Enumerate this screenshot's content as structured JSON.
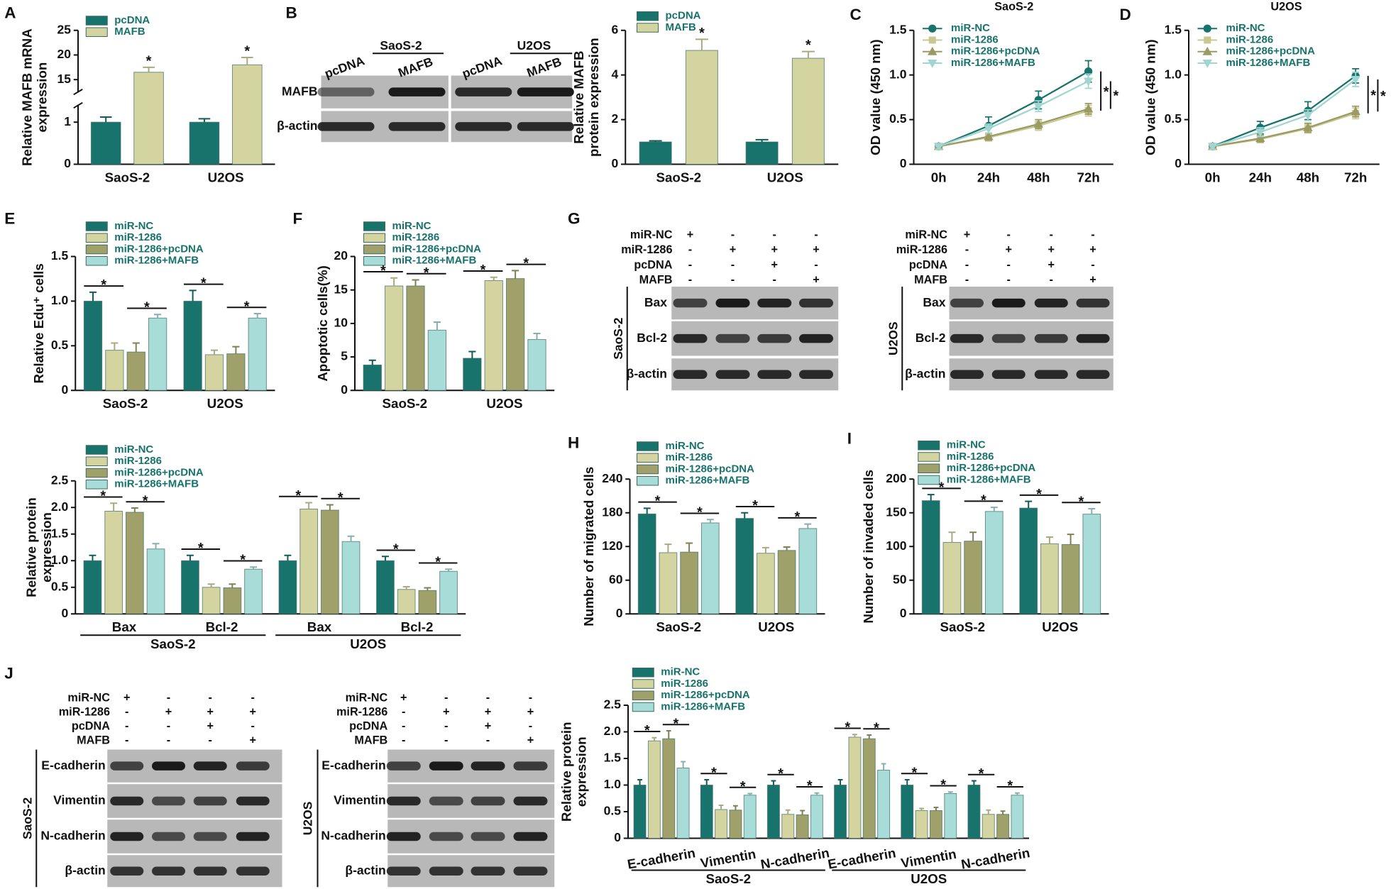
{
  "panel_labels": [
    "A",
    "B",
    "C",
    "D",
    "E",
    "F",
    "G",
    "H",
    "I",
    "J"
  ],
  "chart_data": [
    {
      "type": "bar",
      "ylabel": [
        "Relative MAFB mRNA",
        "expression"
      ],
      "categories": [
        "SaoS-2",
        "U2OS"
      ],
      "ylim": [
        0,
        25
      ],
      "ybreak": [
        1.4,
        12.5
      ],
      "yticks": [
        0,
        1,
        15,
        20,
        25
      ],
      "series": [
        {
          "name": "pcDNA",
          "color": "#17736b",
          "values": [
            1.0,
            1.0
          ],
          "errors": [
            0.12,
            0.08
          ]
        },
        {
          "name": "MAFB",
          "color": "#d4d4a0",
          "values": [
            16.5,
            18
          ],
          "errors": [
            1,
            1.5
          ]
        }
      ],
      "comparisons": [
        {
          "between": [
            "MAFB"
          ],
          "label": "*"
        }
      ]
    },
    {
      "type": "bar",
      "ylabel": [
        "Relative MAFB",
        "protein expression"
      ],
      "categories": [
        "SaoS-2",
        "U2OS"
      ],
      "ylim": [
        0,
        6
      ],
      "yticks": [
        0,
        2,
        4,
        6
      ],
      "series": [
        {
          "name": "pcDNA",
          "color": "#17736b",
          "values": [
            1.0,
            1.0
          ],
          "errors": [
            0.05,
            0.1
          ]
        },
        {
          "name": "MAFB",
          "color": "#d4d4a0",
          "values": [
            5.1,
            4.75
          ],
          "errors": [
            0.5,
            0.3
          ]
        }
      ],
      "comparisons": [
        {
          "between": [
            "MAFB"
          ],
          "label": "*"
        }
      ]
    },
    {
      "type": "line",
      "title": "SaoS-2",
      "ylabel": "OD value (450 nm)",
      "categories": [
        "0h",
        "24h",
        "48h",
        "72h"
      ],
      "ylim": [
        0,
        1.5
      ],
      "yticks": [
        0,
        0.5,
        {
          "value": 1,
          "label": "1.0"
        },
        1.5
      ],
      "series": [
        {
          "name": "miR-NC",
          "color": "#17736b",
          "marker": "circle",
          "values": [
            0.2,
            0.43,
            0.72,
            1.04
          ],
          "errors": [
            0.03,
            0.1,
            0.1,
            0.12
          ]
        },
        {
          "name": "miR-1286",
          "color": "#c8c890",
          "marker": "square",
          "values": [
            0.2,
            0.3,
            0.43,
            0.6
          ],
          "errors": [
            0.03,
            0.04,
            0.05,
            0.06
          ]
        },
        {
          "name": "miR-1286+pcDNA",
          "color": "#9a9a62",
          "marker": "triangle",
          "values": [
            0.2,
            0.31,
            0.45,
            0.62
          ],
          "errors": [
            0.03,
            0.04,
            0.05,
            0.06
          ]
        },
        {
          "name": "miR-1286+MAFB",
          "color": "#9fd6d2",
          "marker": "triangle-down",
          "values": [
            0.2,
            0.4,
            0.65,
            0.93
          ],
          "errors": [
            0.03,
            0.05,
            0.06,
            0.08
          ]
        }
      ],
      "comparisons": [
        {
          "between": [
            "miR-NC",
            "miR-1286"
          ],
          "label": "*"
        },
        {
          "between": [
            "miR-1286+MAFB",
            "miR-1286+pcDNA"
          ],
          "label": "*"
        }
      ]
    },
    {
      "type": "line",
      "title": "U2OS",
      "ylabel": "OD value (450 nm)",
      "categories": [
        "0h",
        "24h",
        "48h",
        "72h"
      ],
      "ylim": [
        0,
        1.5
      ],
      "yticks": [
        0,
        0.5,
        {
          "value": 1,
          "label": "1.0"
        },
        1.5
      ],
      "series": [
        {
          "name": "miR-NC",
          "color": "#17736b",
          "marker": "circle",
          "values": [
            0.2,
            0.41,
            0.6,
            0.99
          ],
          "errors": [
            0.03,
            0.07,
            0.1,
            0.08
          ]
        },
        {
          "name": "miR-1286",
          "color": "#c8c890",
          "marker": "square",
          "values": [
            0.2,
            0.28,
            0.4,
            0.57
          ],
          "errors": [
            0.03,
            0.04,
            0.05,
            0.06
          ]
        },
        {
          "name": "miR-1286+pcDNA",
          "color": "#9a9a62",
          "marker": "triangle",
          "values": [
            0.2,
            0.29,
            0.41,
            0.59
          ],
          "errors": [
            0.03,
            0.04,
            0.05,
            0.06
          ]
        },
        {
          "name": "miR-1286+MAFB",
          "color": "#9fd6d2",
          "marker": "triangle-down",
          "values": [
            0.2,
            0.36,
            0.55,
            0.95
          ],
          "errors": [
            0.03,
            0.05,
            0.06,
            0.08
          ]
        }
      ],
      "comparisons": [
        {
          "between": [
            "miR-NC",
            "miR-1286"
          ],
          "label": "*"
        },
        {
          "between": [
            "miR-1286+MAFB",
            "miR-1286+pcDNA"
          ],
          "label": "*"
        }
      ]
    },
    {
      "type": "bar",
      "ylabel": "Relative Edu⁺ cells",
      "categories": [
        "SaoS-2",
        "U2OS"
      ],
      "ylim": [
        0,
        1.5
      ],
      "yticks": [
        0,
        0.5,
        {
          "value": 1,
          "label": "1.0"
        },
        1.5
      ],
      "series": [
        {
          "name": "miR-NC",
          "color": "#17736b",
          "values": [
            1.0,
            1.0
          ],
          "errors": [
            0.1,
            0.12
          ]
        },
        {
          "name": "miR-1286",
          "color": "#d4d4a0",
          "values": [
            0.45,
            0.4
          ],
          "errors": [
            0.08,
            0.05
          ]
        },
        {
          "name": "miR-1286+pcDNA",
          "color": "#a0a06a",
          "values": [
            0.43,
            0.41
          ],
          "errors": [
            0.1,
            0.08
          ]
        },
        {
          "name": "miR-1286+MAFB",
          "color": "#a7dcd8",
          "values": [
            0.81,
            0.81
          ],
          "errors": [
            0.04,
            0.05
          ]
        }
      ],
      "comparisons": [
        {
          "between": [
            "miR-NC",
            "miR-1286"
          ],
          "label": "*"
        },
        {
          "between": [
            "miR-1286+pcDNA",
            "miR-1286+MAFB"
          ],
          "label": "*"
        }
      ]
    },
    {
      "type": "bar",
      "ylabel": "Apoptotic cells(%)",
      "categories": [
        "SaoS-2",
        "U2OS"
      ],
      "ylim": [
        0,
        20
      ],
      "yticks": [
        0,
        5,
        10,
        15,
        20
      ],
      "series": [
        {
          "name": "miR-NC",
          "color": "#17736b",
          "values": [
            3.8,
            4.8
          ],
          "errors": [
            0.7,
            1
          ]
        },
        {
          "name": "miR-1286",
          "color": "#d4d4a0",
          "values": [
            15.6,
            16.4
          ],
          "errors": [
            1.2,
            0.5
          ]
        },
        {
          "name": "miR-1286+pcDNA",
          "color": "#a0a06a",
          "values": [
            15.6,
            16.7
          ],
          "errors": [
            0.9,
            1.2
          ]
        },
        {
          "name": "miR-1286+MAFB",
          "color": "#a7dcd8",
          "values": [
            9.0,
            7.6
          ],
          "errors": [
            1.2,
            0.9
          ]
        }
      ],
      "comparisons": [
        {
          "between": [
            "miR-NC",
            "miR-1286"
          ],
          "label": "*"
        },
        {
          "between": [
            "miR-1286+pcDNA",
            "miR-1286+MAFB"
          ],
          "label": "*"
        }
      ]
    },
    {
      "type": "bar",
      "ylabel": [
        "Relative protein",
        "expression"
      ],
      "categories": [
        "Bax",
        "Bcl-2",
        "Bax",
        "Bcl-2"
      ],
      "groups": [
        "SaoS-2",
        "U2OS"
      ],
      "ylim": [
        0,
        2.5
      ],
      "yticks": [
        0,
        0.5,
        {
          "value": 1,
          "label": "1.0"
        },
        1.5,
        {
          "value": 2,
          "label": "2.0"
        },
        2.5
      ],
      "series": [
        {
          "name": "miR-NC",
          "color": "#17736b",
          "values": [
            1.0,
            1.0,
            1.0,
            1.0
          ],
          "errors": [
            0.1,
            0.1,
            0.1,
            0.08
          ]
        },
        {
          "name": "miR-1286",
          "color": "#d4d4a0",
          "values": [
            1.93,
            0.5,
            1.97,
            0.46
          ],
          "errors": [
            0.15,
            0.06,
            0.12,
            0.05
          ]
        },
        {
          "name": "miR-1286+pcDNA",
          "color": "#a0a06a",
          "values": [
            1.91,
            0.49,
            1.95,
            0.44
          ],
          "errors": [
            0.08,
            0.07,
            0.1,
            0.05
          ]
        },
        {
          "name": "miR-1286+MAFB",
          "color": "#a7dcd8",
          "values": [
            1.22,
            0.84,
            1.36,
            0.8
          ],
          "errors": [
            0.1,
            0.04,
            0.1,
            0.04
          ]
        }
      ],
      "comparisons": [
        {
          "between": [
            "miR-NC",
            "miR-1286"
          ],
          "label": "*"
        },
        {
          "between": [
            "miR-1286+pcDNA",
            "miR-1286+MAFB"
          ],
          "label": "*"
        }
      ]
    },
    {
      "type": "bar",
      "ylabel": "Number of migrated cells",
      "categories": [
        "SaoS-2",
        "U2OS"
      ],
      "ylim": [
        0,
        240
      ],
      "yticks": [
        0,
        60,
        120,
        180,
        240
      ],
      "series": [
        {
          "name": "miR-NC",
          "color": "#17736b",
          "values": [
            178,
            170
          ],
          "errors": [
            10,
            10
          ]
        },
        {
          "name": "miR-1286",
          "color": "#d4d4a0",
          "values": [
            109,
            108
          ],
          "errors": [
            15,
            10
          ]
        },
        {
          "name": "miR-1286+pcDNA",
          "color": "#a0a06a",
          "values": [
            110,
            113
          ],
          "errors": [
            16,
            6
          ]
        },
        {
          "name": "miR-1286+MAFB",
          "color": "#a7dcd8",
          "values": [
            162,
            152
          ],
          "errors": [
            6,
            8
          ]
        }
      ],
      "comparisons": [
        {
          "between": [
            "miR-NC",
            "miR-1286"
          ],
          "label": "*"
        },
        {
          "between": [
            "miR-1286+pcDNA",
            "miR-1286+MAFB"
          ],
          "label": "*"
        }
      ]
    },
    {
      "type": "bar",
      "ylabel": "Number of invaded cells",
      "categories": [
        "SaoS-2",
        "U2OS"
      ],
      "ylim": [
        0,
        200
      ],
      "yticks": [
        0,
        50,
        100,
        150,
        200
      ],
      "series": [
        {
          "name": "miR-NC",
          "color": "#17736b",
          "values": [
            168,
            157
          ],
          "errors": [
            9,
            10
          ]
        },
        {
          "name": "miR-1286",
          "color": "#d4d4a0",
          "values": [
            106,
            104
          ],
          "errors": [
            15,
            10
          ]
        },
        {
          "name": "miR-1286+pcDNA",
          "color": "#a0a06a",
          "values": [
            108,
            103
          ],
          "errors": [
            13,
            15
          ]
        },
        {
          "name": "miR-1286+MAFB",
          "color": "#a7dcd8",
          "values": [
            152,
            148
          ],
          "errors": [
            6,
            8
          ]
        }
      ],
      "comparisons": [
        {
          "between": [
            "miR-NC",
            "miR-1286"
          ],
          "label": "*"
        },
        {
          "between": [
            "miR-1286+pcDNA",
            "miR-1286+MAFB"
          ],
          "label": "*"
        }
      ]
    },
    {
      "type": "bar",
      "ylabel": [
        "Relative protein",
        "expression"
      ],
      "categories": [
        "E-cadherin",
        "Vimentin",
        "N-cadherin",
        "E-cadherin",
        "Vimentin",
        "N-cadherin"
      ],
      "groups": [
        "SaoS-2",
        "U2OS"
      ],
      "ylim": [
        0,
        2.5
      ],
      "yticks": [
        0,
        0.5,
        {
          "value": 1,
          "label": "1.0"
        },
        1.5,
        {
          "value": 2,
          "label": "2.0"
        },
        2.5
      ],
      "series": [
        {
          "name": "miR-NC",
          "color": "#17736b",
          "values": [
            1,
            1,
            1,
            1,
            1,
            1
          ],
          "errors": [
            0.1,
            0.1,
            0.08,
            0.1,
            0.1,
            0.08
          ]
        },
        {
          "name": "miR-1286",
          "color": "#d4d4a0",
          "values": [
            1.83,
            0.54,
            0.45,
            1.9,
            0.52,
            0.45
          ],
          "errors": [
            0.06,
            0.08,
            0.08,
            0.05,
            0.04,
            0.08
          ]
        },
        {
          "name": "miR-1286+pcDNA",
          "color": "#a0a06a",
          "values": [
            1.87,
            0.53,
            0.44,
            1.87,
            0.52,
            0.45
          ],
          "errors": [
            0.15,
            0.08,
            0.08,
            0.07,
            0.06,
            0.06
          ]
        },
        {
          "name": "miR-1286+MAFB",
          "color": "#a7dcd8",
          "values": [
            1.32,
            0.81,
            0.81,
            1.28,
            0.84,
            0.81
          ],
          "errors": [
            0.12,
            0.03,
            0.04,
            0.12,
            0.03,
            0.04
          ]
        }
      ],
      "comparisons": [
        {
          "between": [
            "miR-NC",
            "miR-1286"
          ],
          "label": "*"
        },
        {
          "between": [
            "miR-1286+pcDNA",
            "miR-1286+MAFB"
          ],
          "label": "*"
        }
      ]
    }
  ],
  "blots": [
    {
      "column_groups": [
        "SaoS-2",
        "U2OS"
      ],
      "lanes": [
        "pcDNA",
        "MAFB",
        "pcDNA",
        "MAFB"
      ],
      "rows": [
        "MAFB",
        "β-actin"
      ]
    },
    {
      "conditions": [
        {
          "name": "miR-NC",
          "signs": [
            "+",
            "-",
            "-",
            "-"
          ]
        },
        {
          "name": "miR-1286",
          "signs": [
            "-",
            "+",
            "+",
            "+"
          ]
        },
        {
          "name": "pcDNA",
          "signs": [
            "-",
            "-",
            "+",
            "-"
          ]
        },
        {
          "name": "MAFB",
          "signs": [
            "-",
            "-",
            "-",
            "+"
          ]
        }
      ],
      "side": "SaoS-2",
      "rows": [
        "Bax",
        "Bcl-2",
        "β-actin"
      ]
    },
    {
      "conditions": [
        {
          "name": "miR-NC",
          "signs": [
            "+",
            "-",
            "-",
            "-"
          ]
        },
        {
          "name": "miR-1286",
          "signs": [
            "-",
            "+",
            "+",
            "+"
          ]
        },
        {
          "name": "pcDNA",
          "signs": [
            "-",
            "-",
            "+",
            "-"
          ]
        },
        {
          "name": "MAFB",
          "signs": [
            "-",
            "-",
            "-",
            "+"
          ]
        }
      ],
      "side": "U2OS",
      "rows": [
        "Bax",
        "Bcl-2",
        "β-actin"
      ]
    },
    {
      "conditions": [
        {
          "name": "miR-NC",
          "signs": [
            "+",
            "-",
            "-",
            "-"
          ]
        },
        {
          "name": "miR-1286",
          "signs": [
            "-",
            "+",
            "+",
            "+"
          ]
        },
        {
          "name": "pcDNA",
          "signs": [
            "-",
            "-",
            "+",
            "-"
          ]
        },
        {
          "name": "MAFB",
          "signs": [
            "-",
            "-",
            "-",
            "+"
          ]
        }
      ],
      "side": "SaoS-2",
      "rows": [
        "E-cadherin",
        "Vimentin",
        "N-cadherin",
        "β-actin"
      ]
    },
    {
      "conditions": [
        {
          "name": "miR-NC",
          "signs": [
            "+",
            "-",
            "-",
            "-"
          ]
        },
        {
          "name": "miR-1286",
          "signs": [
            "-",
            "+",
            "+",
            "+"
          ]
        },
        {
          "name": "pcDNA",
          "signs": [
            "-",
            "-",
            "+",
            "-"
          ]
        },
        {
          "name": "MAFB",
          "signs": [
            "-",
            "-",
            "-",
            "+"
          ]
        }
      ],
      "side": "U2OS",
      "rows": [
        "E-cadherin",
        "Vimentin",
        "N-cadherin",
        "β-actin"
      ]
    }
  ]
}
